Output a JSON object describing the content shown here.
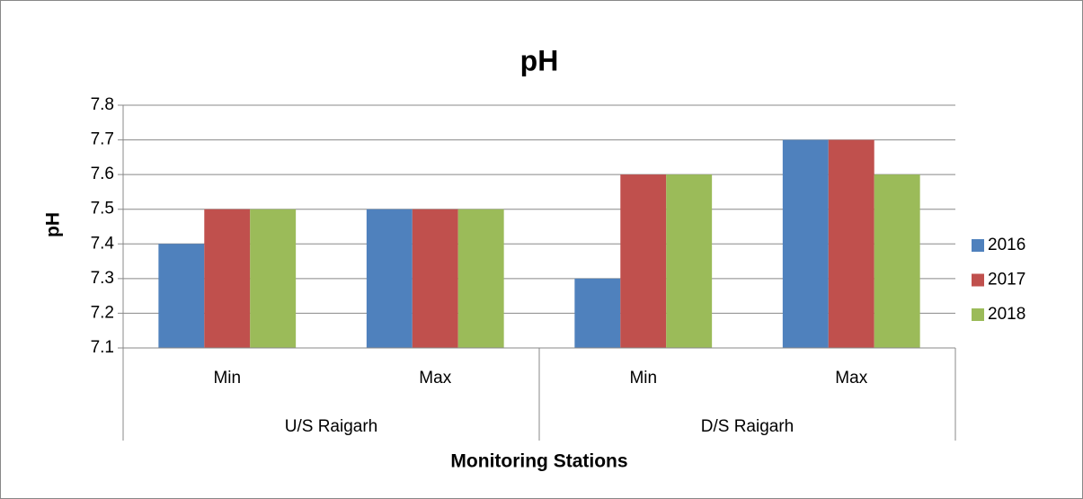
{
  "chart_data": {
    "type": "bar",
    "title": "pH",
    "y_label": "pH",
    "x_label": "Monitoring Stations",
    "groups": [
      {
        "label": "U/S Raigarh",
        "categories": [
          "Min",
          "Max"
        ]
      },
      {
        "label": "D/S Raigarh",
        "categories": [
          "Min",
          "Max"
        ]
      }
    ],
    "series": [
      {
        "name": "2016",
        "color": "#4f81bd",
        "values": [
          7.4,
          7.5,
          7.3,
          7.7
        ]
      },
      {
        "name": "2017",
        "color": "#c0504d",
        "values": [
          7.5,
          7.5,
          7.6,
          7.7
        ]
      },
      {
        "name": "2018",
        "color": "#9bbb59",
        "values": [
          7.5,
          7.5,
          7.6,
          7.6
        ]
      }
    ],
    "ylim": [
      7.1,
      7.8
    ],
    "yticks": [
      7.1,
      7.2,
      7.3,
      7.4,
      7.5,
      7.6,
      7.7,
      7.8
    ],
    "grid": true,
    "legend": "right"
  }
}
